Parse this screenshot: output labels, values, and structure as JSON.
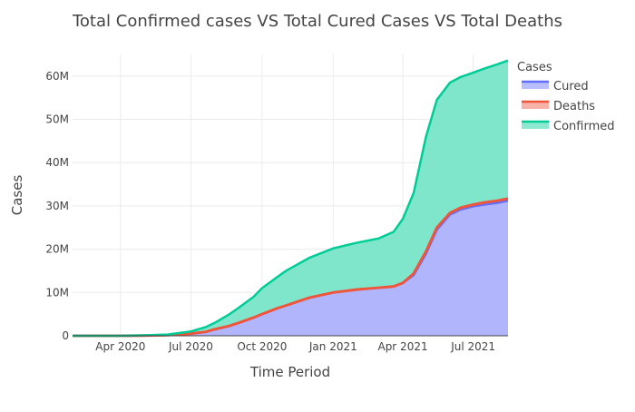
{
  "chart_data": {
    "type": "area",
    "title": "Total Confirmed cases VS Total Cured Cases VS Total Deaths",
    "xlabel": "Time Period",
    "ylabel": "Cases",
    "x_range": [
      "2020-01-30",
      "2021-08-15"
    ],
    "ylim": [
      0,
      65000000
    ],
    "x_ticks": [
      {
        "label": "Apr 2020",
        "date": "2020-04-01"
      },
      {
        "label": "Jul 2020",
        "date": "2020-07-01"
      },
      {
        "label": "Oct 2020",
        "date": "2020-10-01"
      },
      {
        "label": "Jan 2021",
        "date": "2021-01-01"
      },
      {
        "label": "Apr 2021",
        "date": "2021-04-01"
      },
      {
        "label": "Jul 2021",
        "date": "2021-07-01"
      }
    ],
    "y_ticks": [
      {
        "label": "0",
        "value": 0
      },
      {
        "label": "10M",
        "value": 10000000
      },
      {
        "label": "20M",
        "value": 20000000
      },
      {
        "label": "30M",
        "value": 30000000
      },
      {
        "label": "40M",
        "value": 40000000
      },
      {
        "label": "50M",
        "value": 50000000
      },
      {
        "label": "60M",
        "value": 60000000
      }
    ],
    "grid": true,
    "legend": {
      "title": "Cases",
      "position": "top-right"
    },
    "x": [
      "2020-01-30",
      "2020-03-01",
      "2020-04-01",
      "2020-05-01",
      "2020-06-01",
      "2020-07-01",
      "2020-07-20",
      "2020-08-01",
      "2020-08-20",
      "2020-09-01",
      "2020-09-20",
      "2020-10-01",
      "2020-10-20",
      "2020-11-01",
      "2020-12-01",
      "2021-01-01",
      "2021-02-01",
      "2021-03-01",
      "2021-03-20",
      "2021-04-01",
      "2021-04-15",
      "2021-05-01",
      "2021-05-15",
      "2021-06-01",
      "2021-06-15",
      "2021-07-01",
      "2021-07-15",
      "2021-08-01",
      "2021-08-15"
    ],
    "series": [
      {
        "name": "Cured",
        "color": "#636efa",
        "fill": "#b1b6fc",
        "values": [
          0,
          0,
          0,
          50000,
          150000,
          500000,
          900000,
          1500000,
          2300000,
          3000000,
          4200000,
          5000000,
          6300000,
          7000000,
          8800000,
          10000000,
          10700000,
          11100000,
          11400000,
          12200000,
          14000000,
          19000000,
          24500000,
          28000000,
          29200000,
          29900000,
          30300000,
          30700000,
          31200000
        ]
      },
      {
        "name": "Deaths",
        "color": "#ef553b",
        "fill": "#b1b6fc",
        "values": [
          0,
          0,
          0,
          50000,
          150000,
          500000,
          900000,
          1500000,
          2300000,
          3000000,
          4200000,
          5000000,
          6300000,
          7000000,
          8800000,
          10000000,
          10700000,
          11100000,
          11400000,
          12200000,
          14400000,
          19500000,
          25000000,
          28400000,
          29600000,
          30300000,
          30800000,
          31200000,
          31700000
        ]
      },
      {
        "name": "Confirmed",
        "color": "#00cc96",
        "fill": "#80e6cb",
        "values": [
          0,
          0,
          0,
          100000,
          300000,
          1000000,
          2000000,
          3000000,
          5000000,
          6500000,
          9000000,
          11000000,
          13500000,
          15000000,
          18000000,
          20200000,
          21500000,
          22500000,
          24000000,
          27000000,
          33000000,
          46000000,
          54500000,
          58500000,
          59800000,
          60800000,
          61700000,
          62700000,
          63600000
        ]
      }
    ]
  }
}
